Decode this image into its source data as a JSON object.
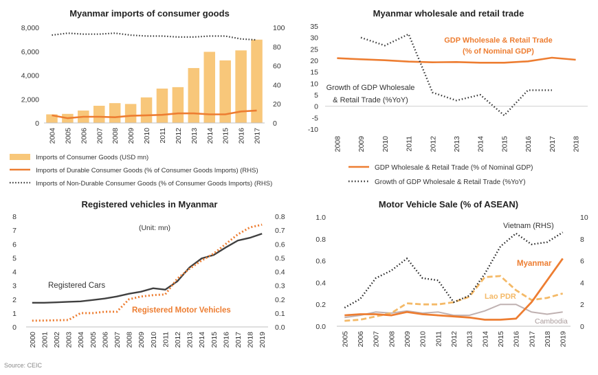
{
  "source": "Source: CEIC",
  "colors": {
    "bar": "#F8C77A",
    "orange": "#ED7D31",
    "dark": "#404040",
    "black": "#000000",
    "lao": "#F4B967",
    "cambodia": "#BFB1B1",
    "text": "#333333"
  },
  "chart_data": [
    {
      "type": "bar",
      "title": "Myanmar imports of consumer goods",
      "categories": [
        "2004",
        "2005",
        "2006",
        "2007",
        "2008",
        "2009",
        "2010",
        "2011",
        "2012",
        "2013",
        "2014",
        "2015",
        "2016",
        "2017"
      ],
      "y_ticks": [
        "0",
        "2,000",
        "4,000",
        "6,000",
        "8,000"
      ],
      "y2_ticks": [
        "0",
        "20",
        "40",
        "60",
        "80",
        "100"
      ],
      "ylim": [
        0,
        8000
      ],
      "y2lim": [
        0,
        100
      ],
      "series": [
        {
          "name": "Imports of Consumer Goods (USD mn)",
          "kind": "bar",
          "axis": "left",
          "values": [
            720,
            760,
            1040,
            1440,
            1660,
            1590,
            2140,
            2880,
            3000,
            4600,
            5960,
            5240,
            6080,
            6980
          ]
        },
        {
          "name": "Imports of Durable Consumer Goods (% of Consumer Goods Imports) (RHS)",
          "kind": "line",
          "axis": "right",
          "values": [
            8,
            5,
            6.5,
            6.5,
            6,
            7.5,
            8,
            8.5,
            10,
            10,
            9,
            9,
            12,
            13
          ]
        },
        {
          "name": "Imports of Non-Durable Consumer Goods (% of Consumer Goods Imports) (RHS)",
          "kind": "dotted",
          "axis": "right",
          "values": [
            92,
            94,
            93,
            93,
            94,
            92,
            91,
            91,
            90,
            90,
            91,
            91,
            88,
            87
          ]
        }
      ],
      "legend_position": "bottom"
    },
    {
      "type": "line",
      "title": "Myanmar wholesale and retail trade",
      "categories": [
        "2008",
        "2009",
        "2010",
        "2011",
        "2012",
        "2013",
        "2014",
        "2015",
        "2016",
        "2017",
        "2018"
      ],
      "y_ticks": [
        "-10",
        "-5",
        "0",
        "5",
        "10",
        "15",
        "20",
        "25",
        "30",
        "35"
      ],
      "ylim": [
        -10,
        35
      ],
      "series": [
        {
          "name": "GDP Wholesale & Retail Trade (% of Nominal GDP)",
          "kind": "line",
          "x": [
            2008,
            2009,
            2010,
            2011,
            2012,
            2013,
            2014,
            2015,
            2016,
            2017,
            2018
          ],
          "values": [
            21,
            20.5,
            20.1,
            19.5,
            19.2,
            19.3,
            19,
            19,
            19.6,
            21.2,
            20.3
          ]
        },
        {
          "name": "Growth of GDP Wholesale & Retail Trade (%YoY)",
          "kind": "dotted",
          "x": [
            2009,
            2010,
            2010.5,
            2011,
            2012,
            2013,
            2014,
            2015,
            2016,
            2017
          ],
          "values": [
            30,
            26.5,
            29,
            31.5,
            6,
            2.5,
            5,
            -4,
            7,
            7
          ]
        }
      ],
      "annotations": [
        {
          "text": "GDP Wholesale & Retail Trade",
          "color": "orange"
        },
        {
          "text": "(% of Nominal GDP)",
          "color": "orange"
        },
        {
          "text": "Growth of GDP Wholesale",
          "color": "text"
        },
        {
          "text": "& Retail Trade (%YoY)",
          "color": "text"
        }
      ],
      "legend_position": "bottom"
    },
    {
      "type": "line",
      "title": "Registered vehicles in Myanmar",
      "subtitle": "(Unit: mn)",
      "categories": [
        "2000",
        "2001",
        "2002",
        "2003",
        "2004",
        "2005",
        "2006",
        "2007",
        "2008",
        "2009",
        "2010",
        "2011",
        "2012",
        "2013",
        "2014",
        "2015",
        "2016",
        "2017",
        "2018",
        "2019"
      ],
      "y_ticks": [
        "0",
        "1",
        "2",
        "3",
        "4",
        "5",
        "6",
        "7",
        "8"
      ],
      "y2_ticks": [
        "0.0",
        "0.1",
        "0.2",
        "0.3",
        "0.4",
        "0.5",
        "0.6",
        "0.7",
        "0.8"
      ],
      "ylim": [
        0,
        8
      ],
      "y2lim": [
        0,
        0.8
      ],
      "series": [
        {
          "name": "Registered Cars",
          "kind": "line",
          "axis": "left",
          "values": [
            1.75,
            1.75,
            1.78,
            1.82,
            1.85,
            1.95,
            2.05,
            2.2,
            2.4,
            2.55,
            2.8,
            2.7,
            3.3,
            4.3,
            4.95,
            5.2,
            5.75,
            6.25,
            6.45,
            6.75
          ]
        },
        {
          "name": "Registered Motor Vehicles",
          "kind": "dotted",
          "axis": "right",
          "values": [
            0.045,
            0.046,
            0.048,
            0.05,
            0.1,
            0.1,
            0.11,
            0.11,
            0.2,
            0.22,
            0.23,
            0.235,
            0.35,
            0.42,
            0.48,
            0.53,
            0.6,
            0.67,
            0.72,
            0.74
          ]
        }
      ],
      "annotations": [
        {
          "text": "Registered Cars",
          "color": "text"
        },
        {
          "text": "Registered Motor Vehicles",
          "color": "orange"
        }
      ]
    },
    {
      "type": "line",
      "title": "Motor Vehicle Sale (% of ASEAN)",
      "categories": [
        "2005",
        "2006",
        "2007",
        "2008",
        "2009",
        "2010",
        "2011",
        "2012",
        "2013",
        "2014",
        "2015",
        "2016",
        "2017",
        "2018",
        "2019"
      ],
      "y_ticks": [
        "0.0",
        "0.2",
        "0.4",
        "0.6",
        "0.8",
        "1.0"
      ],
      "y2_ticks": [
        "0",
        "2",
        "4",
        "6",
        "8",
        "10"
      ],
      "ylim": [
        0,
        1.0
      ],
      "y2lim": [
        0,
        10
      ],
      "series": [
        {
          "name": "Vietnam (RHS)",
          "kind": "dotted",
          "axis": "right",
          "values": [
            1.7,
            2.5,
            4.4,
            5.1,
            6.2,
            4.4,
            4.2,
            2.2,
            2.8,
            4.8,
            7.3,
            8.5,
            7.5,
            7.7,
            8.6
          ]
        },
        {
          "name": "Myanmar",
          "kind": "line",
          "axis": "left",
          "values": [
            0.1,
            0.11,
            0.11,
            0.1,
            0.13,
            0.11,
            0.1,
            0.09,
            0.08,
            0.06,
            0.06,
            0.07,
            0.22,
            0.42,
            0.62
          ]
        },
        {
          "name": "Lao PDR",
          "kind": "dashed",
          "axis": "left",
          "values": [
            0.05,
            0.06,
            0.09,
            0.12,
            0.21,
            0.2,
            0.2,
            0.22,
            0.27,
            0.45,
            0.46,
            0.33,
            0.24,
            0.26,
            0.3
          ]
        },
        {
          "name": "Cambodia",
          "kind": "line",
          "axis": "left",
          "values": [
            0.08,
            0.1,
            0.13,
            0.12,
            0.14,
            0.12,
            0.13,
            0.1,
            0.1,
            0.14,
            0.2,
            0.2,
            0.13,
            0.11,
            0.13
          ]
        }
      ]
    }
  ]
}
